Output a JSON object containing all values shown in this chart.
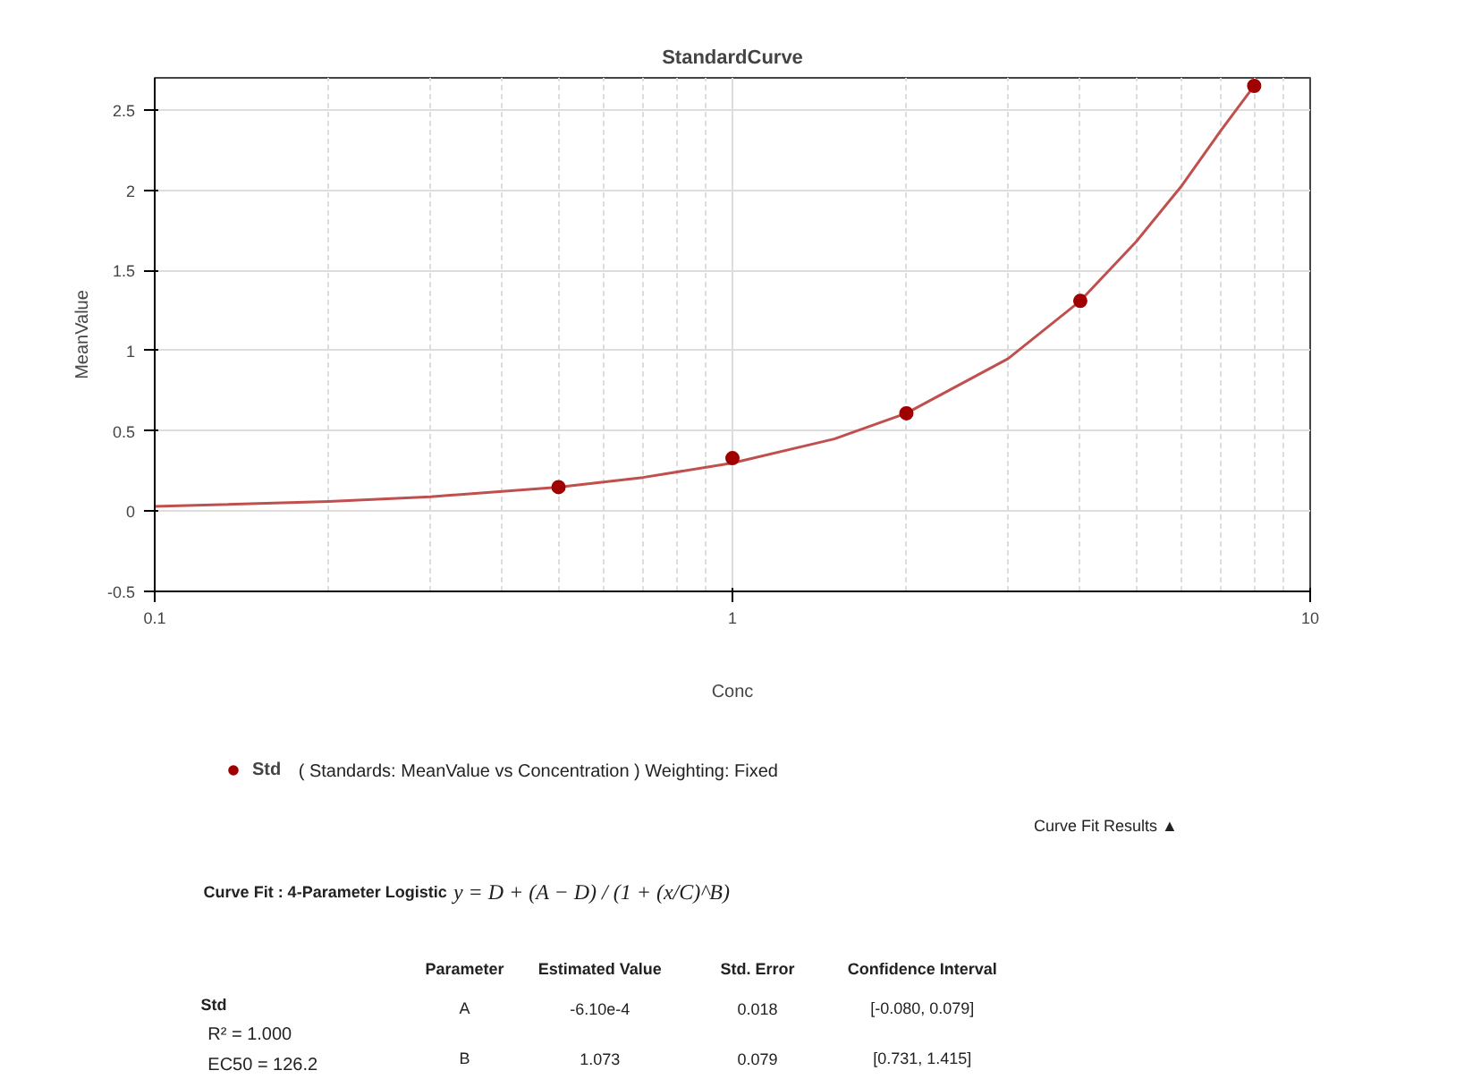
{
  "chart_data": {
    "type": "scatter",
    "title": "StandardCurve",
    "xlabel": "Conc",
    "ylabel": "MeanValue",
    "log": "x",
    "grid": true,
    "legend": "bottom",
    "marker": "circle",
    "xlim": [
      0.1,
      10
    ],
    "xticks": [
      0.1,
      1,
      10
    ],
    "ylim": [
      -0.5,
      2.7
    ],
    "yticks": [
      -0.5,
      0,
      0.5,
      1,
      1.5,
      2,
      2.5
    ],
    "series": [
      {
        "type": "line",
        "marker": "none",
        "color": "#c0504d",
        "x": [
          0.1,
          0.2,
          0.3,
          0.5,
          0.7,
          1,
          1.5,
          2,
          3,
          4,
          5,
          6,
          7,
          8
        ],
        "values": [
          0.03,
          0.06,
          0.09,
          0.15,
          0.21,
          0.3,
          0.45,
          0.61,
          0.95,
          1.31,
          1.68,
          2.03,
          2.37,
          2.65
        ]
      },
      {
        "name": "Std",
        "color": "#a00000",
        "x": [
          0.5,
          1,
          2,
          4,
          8
        ],
        "values": [
          0.15,
          0.33,
          0.61,
          1.31,
          2.65
        ]
      }
    ],
    "annotations": [
      "( Standards: MeanValue vs Concentration ) Weighting: Fixed",
      "Curve Fit Results ▲",
      "Curve Fit : 4-Parameter Logistic",
      "y = D + (A − D) / (1 + (x/C)^B)",
      "Parameter",
      "Estimated Value",
      "Std. Error",
      "Confidence Interval",
      "Std",
      "R² = 1.000",
      "EC50 = 126.2",
      "A",
      "-6.10e-4",
      "0.018",
      "[-0.080, 0.079]",
      "B",
      "1.073",
      "0.079",
      "[0.731, 1.415]"
    ]
  }
}
